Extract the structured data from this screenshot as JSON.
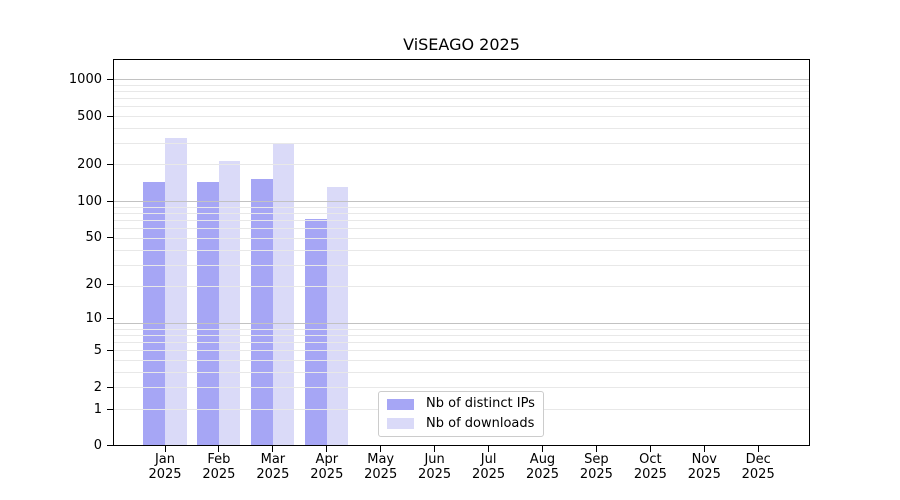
{
  "chart_data": {
    "type": "bar",
    "title": "ViSEAGO 2025",
    "x": {
      "months": [
        "Jan",
        "Feb",
        "Mar",
        "Apr",
        "May",
        "Jun",
        "Jul",
        "Aug",
        "Sep",
        "Oct",
        "Nov",
        "Dec"
      ],
      "year": "2025"
    },
    "y": {
      "scale": "log1p",
      "ticks": [
        0,
        1,
        2,
        5,
        10,
        20,
        50,
        100,
        200,
        500,
        1000
      ],
      "ylim": [
        0,
        1430
      ]
    },
    "series": [
      {
        "name": "Nb of distinct IPs",
        "color": "#a6a6f5",
        "values": [
          145,
          145,
          151,
          71,
          null,
          null,
          null,
          null,
          null,
          null,
          null,
          null
        ]
      },
      {
        "name": "Nb of downloads",
        "color": "#dadaf8",
        "values": [
          330,
          215,
          298,
          131,
          null,
          null,
          null,
          null,
          null,
          null,
          null,
          null
        ]
      }
    ],
    "grid": {
      "on": true,
      "minor_color": "#e8e8e8",
      "major_color": "#c2c2c2",
      "drawn_above_bars": true
    },
    "legend": {
      "position": "bottom-center-inside",
      "border_color": "#cccccc",
      "background": "#ffffff"
    },
    "axis_color": "#000000",
    "background": "#ffffff"
  }
}
